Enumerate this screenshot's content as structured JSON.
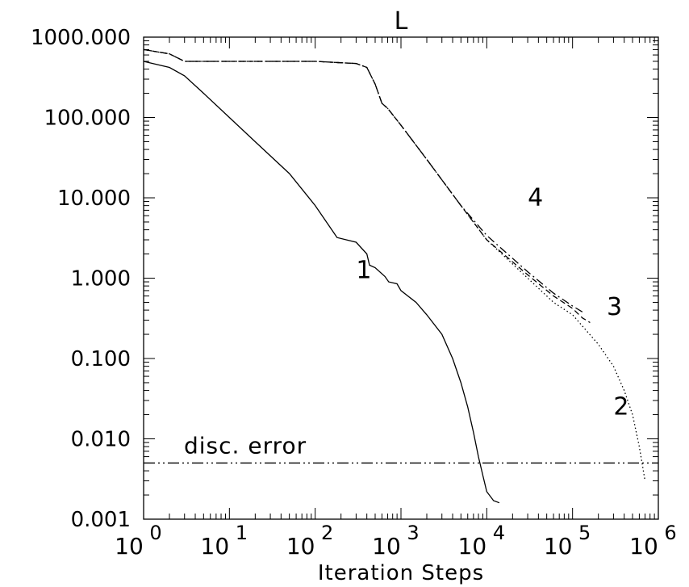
{
  "chart_data": {
    "type": "line",
    "title": "L",
    "xlabel": "Iteration Steps",
    "ylabel": "",
    "x_scale": "log",
    "y_scale": "log",
    "xlim": [
      1,
      1000000
    ],
    "ylim": [
      0.001,
      1000
    ],
    "grid": false,
    "x_tick_labels": [
      {
        "base": "10",
        "exp": "0"
      },
      {
        "base": "10",
        "exp": "1"
      },
      {
        "base": "10",
        "exp": "2"
      },
      {
        "base": "10",
        "exp": "3"
      },
      {
        "base": "10",
        "exp": "4"
      },
      {
        "base": "10",
        "exp": "5"
      },
      {
        "base": "10",
        "exp": "6"
      }
    ],
    "y_tick_labels": [
      "0.001",
      "0.010",
      "0.100",
      "1.000",
      "10.000",
      "100.000",
      "1000.000"
    ],
    "series": [
      {
        "name": "1",
        "style": "solid",
        "x": [
          1,
          2,
          3,
          5,
          10,
          20,
          50,
          100,
          170,
          180,
          300,
          400,
          430,
          500,
          650,
          720,
          900,
          1000,
          1500,
          2000,
          3000,
          4000,
          5000,
          6000,
          7000,
          8000,
          9000,
          10000,
          12000,
          14000
        ],
        "y": [
          500,
          420,
          330,
          200,
          100,
          50,
          20,
          8,
          3.5,
          3.2,
          2.8,
          2.0,
          1.45,
          1.35,
          1.05,
          0.9,
          0.85,
          0.7,
          0.5,
          0.35,
          0.2,
          0.1,
          0.05,
          0.025,
          0.012,
          0.006,
          0.0035,
          0.0022,
          0.0017,
          0.0016
        ]
      },
      {
        "name": "2",
        "style": "dotted",
        "x": [
          1,
          2,
          3,
          10,
          50,
          100,
          200,
          300,
          400,
          500,
          600,
          700,
          1000,
          2000,
          5000,
          10000,
          30000,
          60000,
          100000,
          200000,
          300000,
          400000,
          500000,
          600000,
          700000
        ],
        "y": [
          700,
          620,
          500,
          500,
          500,
          500,
          480,
          470,
          420,
          260,
          150,
          130,
          80,
          30,
          8,
          3,
          1.0,
          0.5,
          0.35,
          0.15,
          0.08,
          0.04,
          0.02,
          0.008,
          0.003
        ]
      },
      {
        "name": "3",
        "style": "dashed",
        "x": [
          1,
          2,
          3,
          10,
          50,
          100,
          200,
          300,
          400,
          500,
          600,
          700,
          1000,
          2000,
          5000,
          10000,
          30000,
          60000,
          100000,
          130000,
          160000
        ],
        "y": [
          700,
          620,
          500,
          500,
          500,
          500,
          480,
          470,
          420,
          260,
          150,
          130,
          80,
          30,
          8,
          3,
          1.1,
          0.6,
          0.42,
          0.32,
          0.28
        ]
      },
      {
        "name": "4",
        "style": "dash-dot",
        "x": [
          1,
          2,
          3,
          10,
          50,
          100,
          200,
          300,
          400,
          500,
          600,
          700,
          1000,
          2000,
          5000,
          10000,
          30000,
          60000,
          100000,
          130000
        ],
        "y": [
          700,
          620,
          500,
          500,
          500,
          500,
          480,
          470,
          420,
          260,
          150,
          130,
          80,
          30,
          8,
          3.4,
          1.2,
          0.65,
          0.45,
          0.38
        ]
      }
    ],
    "reference_line": {
      "label": "disc. error",
      "y": 0.005,
      "style": "dash-dot-dot"
    },
    "annotations": [
      {
        "text": "1",
        "x": 300,
        "y": 1.0
      },
      {
        "text": "2",
        "x": 300000,
        "y": 0.02
      },
      {
        "text": "3",
        "x": 250000,
        "y": 0.35
      },
      {
        "text": "4",
        "x": 30000,
        "y": 8
      }
    ]
  }
}
